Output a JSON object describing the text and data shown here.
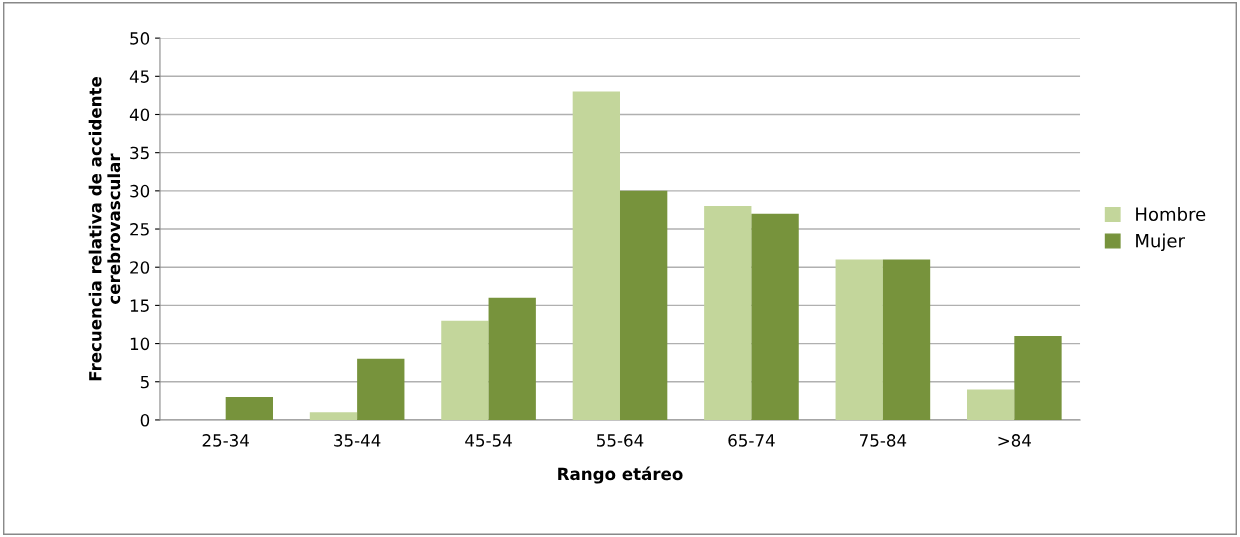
{
  "chart_data": {
    "type": "bar",
    "xlabel": "Rango etáreo",
    "ylabel": "Frecuencia relativa de accidente\ncerebrovascular",
    "categories": [
      "25-34",
      "35-44",
      "45-54",
      "55-64",
      "65-74",
      "75-84",
      ">84"
    ],
    "series": [
      {
        "name": "Hombre",
        "color": "#c3d69b",
        "values": [
          0,
          1,
          13,
          43,
          28,
          21,
          4
        ]
      },
      {
        "name": "Mujer",
        "color": "#77933c",
        "values": [
          3,
          8,
          16,
          30,
          27,
          21,
          11
        ]
      }
    ],
    "ylim": [
      0,
      50
    ],
    "yticks": [
      0,
      5,
      10,
      15,
      20,
      25,
      30,
      35,
      40,
      45,
      50
    ],
    "grid": "y",
    "legend": "right"
  }
}
